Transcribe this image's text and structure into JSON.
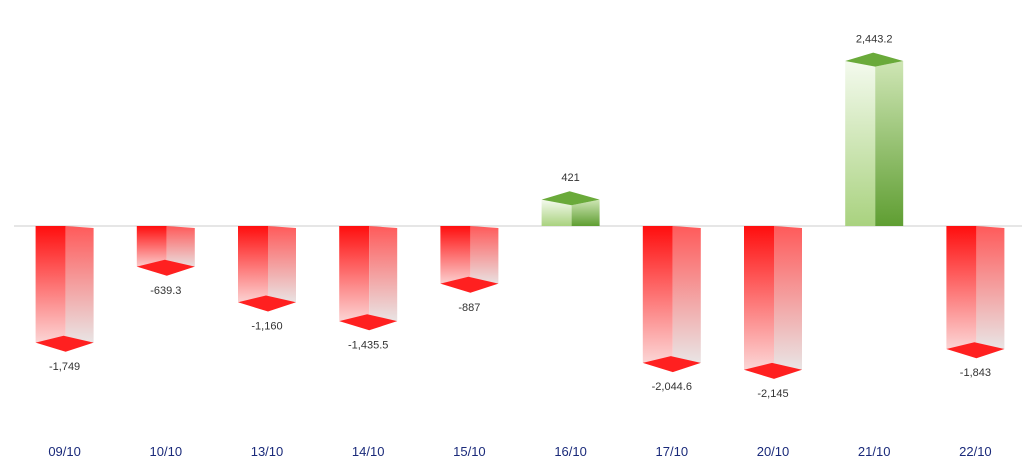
{
  "chart_data": {
    "type": "bar",
    "categories": [
      "09/10",
      "10/10",
      "13/10",
      "14/10",
      "15/10",
      "16/10",
      "17/10",
      "20/10",
      "21/10",
      "22/10"
    ],
    "values": [
      -1749,
      -639.3,
      -1160,
      -1435.5,
      -887,
      421,
      -2044.6,
      -2145,
      2443.2,
      -1843
    ],
    "data_labels": [
      "-1,749",
      "-639.3",
      "-1,160",
      "-1,435.5",
      "-887",
      "421",
      "-2,044.6",
      "-2,145",
      "2,443.2",
      "-1,843"
    ],
    "title": "",
    "xlabel": "",
    "ylabel": "",
    "grid": false,
    "legend": "none",
    "colors": {
      "negative": "#ff1a1a",
      "positive": "#6aaa3a",
      "baseline": "#cccccc",
      "category_text": "#1a2a7a"
    }
  }
}
